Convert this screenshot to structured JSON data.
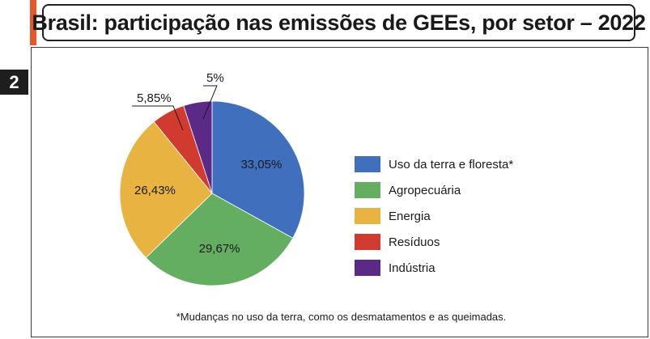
{
  "header": {
    "title": "Brasil: participação nas emissões de GEEs, por setor – 2022",
    "figure_number": "2",
    "accent_color": "#e8562a"
  },
  "chart_data": {
    "type": "pie",
    "title": "Brasil: participação nas emissões de GEEs, por setor – 2022",
    "slices": [
      {
        "name": "Uso da terra e floresta*",
        "value": 33.05,
        "label": "33,05%",
        "color": "#3f6fbd"
      },
      {
        "name": "Agropecuária",
        "value": 29.67,
        "label": "29,67%",
        "color": "#64ae62"
      },
      {
        "name": "Energia",
        "value": 26.43,
        "label": "26,43%",
        "color": "#e9b341"
      },
      {
        "name": "Resíduos",
        "value": 5.85,
        "label": "5,85%",
        "color": "#d13a2e"
      },
      {
        "name": "Indústria",
        "value": 5,
        "label": "5%",
        "color": "#5b2a86"
      }
    ],
    "start_angle_deg": 0,
    "direction": "clockwise",
    "legend_position": "right"
  },
  "footnote": "*Mudanças no uso da terra, como os desmatamentos e as queimadas."
}
